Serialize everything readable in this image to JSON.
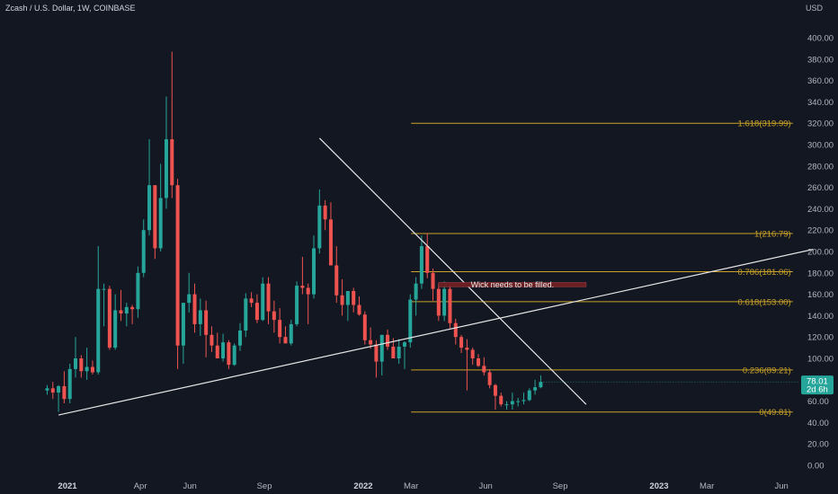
{
  "header": {
    "title": "Zcash / U.S. Dollar, 1W, COINBASE",
    "currency": "USD"
  },
  "colors": {
    "background": "#131722",
    "up": "#26a69a",
    "down": "#ef5350",
    "fib": "#c9a227",
    "trendline": "#e6e6e6",
    "note_bg": "#6b1f22",
    "price_tag": "#26a69a"
  },
  "price_tag": {
    "price": "78.01",
    "countdown": "2d 6h"
  },
  "chart_data": {
    "type": "candlestick",
    "timeframe": "1W",
    "symbol": "ZECUSD",
    "exchange": "COINBASE",
    "ylim": [
      0,
      420
    ],
    "y_ticks": [
      0,
      20,
      40,
      60,
      80,
      100,
      120,
      140,
      160,
      180,
      200,
      220,
      240,
      260,
      280,
      300,
      320,
      340,
      360,
      380,
      400
    ],
    "x_ticks": [
      {
        "label": "2021",
        "date": "2021-01-01",
        "bold": true
      },
      {
        "label": "Apr",
        "date": "2021-04-01"
      },
      {
        "label": "Jun",
        "date": "2021-06-01"
      },
      {
        "label": "Sep",
        "date": "2021-09-01"
      },
      {
        "label": "2022",
        "date": "2022-01-01",
        "bold": true
      },
      {
        "label": "Mar",
        "date": "2022-03-01"
      },
      {
        "label": "Jun",
        "date": "2022-06-01"
      },
      {
        "label": "Sep",
        "date": "2022-09-01"
      },
      {
        "label": "2023",
        "date": "2023-01-01",
        "bold": true
      },
      {
        "label": "Mar",
        "date": "2023-03-01"
      },
      {
        "label": "Jun",
        "date": "2023-06-01"
      }
    ],
    "candles": [
      {
        "date": "2020-12-07",
        "o": 70,
        "h": 75,
        "l": 66,
        "c": 72
      },
      {
        "date": "2020-12-14",
        "o": 72,
        "h": 78,
        "l": 62,
        "c": 68
      },
      {
        "date": "2020-12-21",
        "o": 68,
        "h": 75,
        "l": 50,
        "c": 74
      },
      {
        "date": "2020-12-28",
        "o": 74,
        "h": 88,
        "l": 58,
        "c": 62
      },
      {
        "date": "2021-01-04",
        "o": 62,
        "h": 95,
        "l": 58,
        "c": 90
      },
      {
        "date": "2021-01-11",
        "o": 90,
        "h": 120,
        "l": 82,
        "c": 100
      },
      {
        "date": "2021-01-18",
        "o": 100,
        "h": 103,
        "l": 82,
        "c": 88
      },
      {
        "date": "2021-01-25",
        "o": 88,
        "h": 110,
        "l": 80,
        "c": 92
      },
      {
        "date": "2021-02-01",
        "o": 92,
        "h": 98,
        "l": 85,
        "c": 87
      },
      {
        "date": "2021-02-08",
        "o": 87,
        "h": 205,
        "l": 85,
        "c": 165
      },
      {
        "date": "2021-02-15",
        "o": 165,
        "h": 170,
        "l": 130,
        "c": 165
      },
      {
        "date": "2021-02-22",
        "o": 165,
        "h": 168,
        "l": 108,
        "c": 110
      },
      {
        "date": "2021-03-01",
        "o": 110,
        "h": 160,
        "l": 108,
        "c": 145
      },
      {
        "date": "2021-03-08",
        "o": 145,
        "h": 164,
        "l": 135,
        "c": 142
      },
      {
        "date": "2021-03-15",
        "o": 142,
        "h": 152,
        "l": 130,
        "c": 148
      },
      {
        "date": "2021-03-22",
        "o": 148,
        "h": 150,
        "l": 132,
        "c": 146
      },
      {
        "date": "2021-03-29",
        "o": 146,
        "h": 186,
        "l": 138,
        "c": 180
      },
      {
        "date": "2021-04-05",
        "o": 180,
        "h": 230,
        "l": 176,
        "c": 220
      },
      {
        "date": "2021-04-12",
        "o": 220,
        "h": 305,
        "l": 215,
        "c": 262
      },
      {
        "date": "2021-04-19",
        "o": 262,
        "h": 262,
        "l": 193,
        "c": 203
      },
      {
        "date": "2021-04-26",
        "o": 203,
        "h": 282,
        "l": 200,
        "c": 250
      },
      {
        "date": "2021-05-03",
        "o": 250,
        "h": 345,
        "l": 240,
        "c": 305
      },
      {
        "date": "2021-05-10",
        "o": 305,
        "h": 387,
        "l": 250,
        "c": 262
      },
      {
        "date": "2021-05-17",
        "o": 262,
        "h": 268,
        "l": 90,
        "c": 112
      },
      {
        "date": "2021-05-24",
        "o": 112,
        "h": 150,
        "l": 95,
        "c": 152
      },
      {
        "date": "2021-05-31",
        "o": 152,
        "h": 180,
        "l": 143,
        "c": 160
      },
      {
        "date": "2021-06-07",
        "o": 160,
        "h": 170,
        "l": 124,
        "c": 132
      },
      {
        "date": "2021-06-14",
        "o": 132,
        "h": 156,
        "l": 121,
        "c": 145
      },
      {
        "date": "2021-06-21",
        "o": 145,
        "h": 154,
        "l": 101,
        "c": 122
      },
      {
        "date": "2021-06-28",
        "o": 122,
        "h": 130,
        "l": 106,
        "c": 112
      },
      {
        "date": "2021-07-05",
        "o": 112,
        "h": 124,
        "l": 100,
        "c": 100
      },
      {
        "date": "2021-07-12",
        "o": 100,
        "h": 123,
        "l": 97,
        "c": 115
      },
      {
        "date": "2021-07-19",
        "o": 115,
        "h": 117,
        "l": 90,
        "c": 94
      },
      {
        "date": "2021-07-26",
        "o": 94,
        "h": 114,
        "l": 93,
        "c": 112
      },
      {
        "date": "2021-08-02",
        "o": 112,
        "h": 133,
        "l": 107,
        "c": 126
      },
      {
        "date": "2021-08-09",
        "o": 126,
        "h": 161,
        "l": 120,
        "c": 156
      },
      {
        "date": "2021-08-16",
        "o": 156,
        "h": 162,
        "l": 148,
        "c": 152
      },
      {
        "date": "2021-08-23",
        "o": 152,
        "h": 160,
        "l": 133,
        "c": 136
      },
      {
        "date": "2021-08-30",
        "o": 136,
        "h": 176,
        "l": 135,
        "c": 170
      },
      {
        "date": "2021-09-06",
        "o": 170,
        "h": 176,
        "l": 132,
        "c": 144
      },
      {
        "date": "2021-09-13",
        "o": 144,
        "h": 154,
        "l": 124,
        "c": 136
      },
      {
        "date": "2021-09-20",
        "o": 136,
        "h": 147,
        "l": 114,
        "c": 120
      },
      {
        "date": "2021-09-27",
        "o": 120,
        "h": 130,
        "l": 114,
        "c": 114
      },
      {
        "date": "2021-10-04",
        "o": 114,
        "h": 136,
        "l": 112,
        "c": 132
      },
      {
        "date": "2021-10-11",
        "o": 132,
        "h": 172,
        "l": 130,
        "c": 168
      },
      {
        "date": "2021-10-18",
        "o": 168,
        "h": 195,
        "l": 160,
        "c": 166
      },
      {
        "date": "2021-10-25",
        "o": 166,
        "h": 170,
        "l": 132,
        "c": 160
      },
      {
        "date": "2021-11-01",
        "o": 160,
        "h": 215,
        "l": 156,
        "c": 203
      },
      {
        "date": "2021-11-08",
        "o": 203,
        "h": 258,
        "l": 198,
        "c": 243
      },
      {
        "date": "2021-11-15",
        "o": 243,
        "h": 248,
        "l": 220,
        "c": 230
      },
      {
        "date": "2021-11-22",
        "o": 230,
        "h": 246,
        "l": 187,
        "c": 187
      },
      {
        "date": "2021-11-29",
        "o": 187,
        "h": 205,
        "l": 152,
        "c": 159
      },
      {
        "date": "2021-12-06",
        "o": 159,
        "h": 174,
        "l": 140,
        "c": 150
      },
      {
        "date": "2021-12-13",
        "o": 150,
        "h": 160,
        "l": 135,
        "c": 163
      },
      {
        "date": "2021-12-20",
        "o": 163,
        "h": 166,
        "l": 143,
        "c": 150
      },
      {
        "date": "2021-12-27",
        "o": 150,
        "h": 158,
        "l": 140,
        "c": 141
      },
      {
        "date": "2022-01-03",
        "o": 141,
        "h": 144,
        "l": 113,
        "c": 117
      },
      {
        "date": "2022-01-10",
        "o": 117,
        "h": 129,
        "l": 109,
        "c": 113
      },
      {
        "date": "2022-01-17",
        "o": 113,
        "h": 117,
        "l": 82,
        "c": 97
      },
      {
        "date": "2022-01-24",
        "o": 97,
        "h": 122,
        "l": 84,
        "c": 122
      },
      {
        "date": "2022-01-31",
        "o": 122,
        "h": 127,
        "l": 108,
        "c": 111
      },
      {
        "date": "2022-02-07",
        "o": 111,
        "h": 119,
        "l": 100,
        "c": 100
      },
      {
        "date": "2022-02-14",
        "o": 100,
        "h": 118,
        "l": 95,
        "c": 111
      },
      {
        "date": "2022-02-21",
        "o": 111,
        "h": 116,
        "l": 90,
        "c": 115
      },
      {
        "date": "2022-02-28",
        "o": 115,
        "h": 160,
        "l": 110,
        "c": 155
      },
      {
        "date": "2022-03-07",
        "o": 155,
        "h": 176,
        "l": 140,
        "c": 170
      },
      {
        "date": "2022-03-14",
        "o": 170,
        "h": 215,
        "l": 165,
        "c": 205
      },
      {
        "date": "2022-03-21",
        "o": 205,
        "h": 217,
        "l": 175,
        "c": 180
      },
      {
        "date": "2022-03-28",
        "o": 180,
        "h": 184,
        "l": 154,
        "c": 165
      },
      {
        "date": "2022-04-04",
        "o": 165,
        "h": 170,
        "l": 135,
        "c": 140
      },
      {
        "date": "2022-04-11",
        "o": 140,
        "h": 172,
        "l": 135,
        "c": 165
      },
      {
        "date": "2022-04-18",
        "o": 165,
        "h": 170,
        "l": 128,
        "c": 133
      },
      {
        "date": "2022-04-25",
        "o": 133,
        "h": 137,
        "l": 113,
        "c": 120
      },
      {
        "date": "2022-05-02",
        "o": 120,
        "h": 122,
        "l": 105,
        "c": 110
      },
      {
        "date": "2022-05-09",
        "o": 110,
        "h": 118,
        "l": 70,
        "c": 108
      },
      {
        "date": "2022-05-16",
        "o": 108,
        "h": 110,
        "l": 94,
        "c": 100
      },
      {
        "date": "2022-05-23",
        "o": 100,
        "h": 104,
        "l": 92,
        "c": 93
      },
      {
        "date": "2022-05-30",
        "o": 93,
        "h": 101,
        "l": 84,
        "c": 87
      },
      {
        "date": "2022-06-06",
        "o": 87,
        "h": 90,
        "l": 72,
        "c": 75
      },
      {
        "date": "2022-06-13",
        "o": 75,
        "h": 76,
        "l": 52,
        "c": 65
      },
      {
        "date": "2022-06-20",
        "o": 65,
        "h": 68,
        "l": 55,
        "c": 57
      },
      {
        "date": "2022-06-27",
        "o": 57,
        "h": 60,
        "l": 52,
        "c": 57
      },
      {
        "date": "2022-07-04",
        "o": 57,
        "h": 68,
        "l": 52,
        "c": 60
      },
      {
        "date": "2022-07-11",
        "o": 60,
        "h": 63,
        "l": 55,
        "c": 60
      },
      {
        "date": "2022-07-18",
        "o": 60,
        "h": 68,
        "l": 57,
        "c": 61
      },
      {
        "date": "2022-07-25",
        "o": 61,
        "h": 72,
        "l": 60,
        "c": 70
      },
      {
        "date": "2022-08-01",
        "o": 70,
        "h": 80,
        "l": 66,
        "c": 73
      },
      {
        "date": "2022-08-08",
        "o": 73,
        "h": 84,
        "l": 72,
        "c": 78.01
      }
    ],
    "fibonacci": [
      {
        "ratio": "1.618",
        "value": 319.99,
        "label": "1.618(319.99)"
      },
      {
        "ratio": "1",
        "value": 216.79,
        "label": "1(216.79)"
      },
      {
        "ratio": "0.786",
        "value": 181.06,
        "label": "0.786(181.06)"
      },
      {
        "ratio": "0.618",
        "value": 153.0,
        "label": "0.618(153.00)"
      },
      {
        "ratio": "0.236",
        "value": 89.21,
        "label": "0.236(89.21)"
      },
      {
        "ratio": "0",
        "value": 49.81,
        "label": "0(49.81)"
      }
    ],
    "fib_range": {
      "start": "2022-03-01",
      "end": "2023-06-15"
    },
    "trendlines": [
      {
        "name": "descending-resistance",
        "from": {
          "date": "2021-11-08",
          "price": 306
        },
        "to": {
          "date": "2022-10-03",
          "price": 57
        }
      },
      {
        "name": "ascending-support",
        "from": {
          "date": "2020-12-21",
          "price": 47
        },
        "to": {
          "date": "2023-07-10",
          "price": 202
        }
      }
    ],
    "annotation": {
      "text": "Wick needs to be filled.",
      "from": {
        "date": "2022-04-04",
        "price": 171
      },
      "to": {
        "date": "2022-10-03",
        "price": 167
      }
    }
  }
}
